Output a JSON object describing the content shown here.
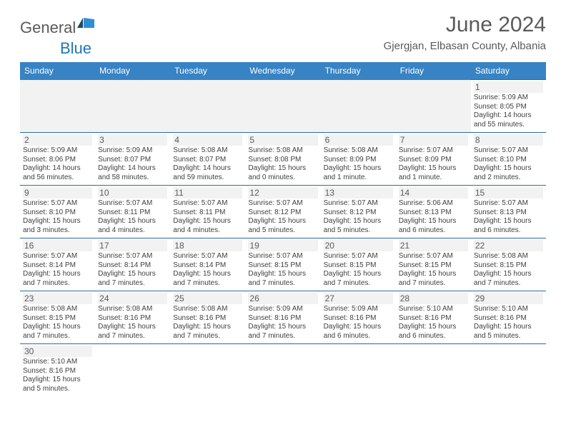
{
  "logo": {
    "main": "General",
    "accent": "Blue"
  },
  "title": "June 2024",
  "location": "Gjergjan, Elbasan County, Albania",
  "dayHeaders": [
    "Sunday",
    "Monday",
    "Tuesday",
    "Wednesday",
    "Thursday",
    "Friday",
    "Saturday"
  ],
  "colors": {
    "headerBg": "#3783c4",
    "headerText": "#ffffff",
    "rowStripe": "#f2f2f2",
    "border": "#2a6aa3",
    "logoGray": "#5a5a5a",
    "logoBlue": "#2176be"
  },
  "weeks": [
    [
      null,
      null,
      null,
      null,
      null,
      null,
      {
        "n": "1",
        "sr": "Sunrise: 5:09 AM",
        "ss": "Sunset: 8:05 PM",
        "d1": "Daylight: 14 hours",
        "d2": "and 55 minutes."
      }
    ],
    [
      {
        "n": "2",
        "sr": "Sunrise: 5:09 AM",
        "ss": "Sunset: 8:06 PM",
        "d1": "Daylight: 14 hours",
        "d2": "and 56 minutes."
      },
      {
        "n": "3",
        "sr": "Sunrise: 5:09 AM",
        "ss": "Sunset: 8:07 PM",
        "d1": "Daylight: 14 hours",
        "d2": "and 58 minutes."
      },
      {
        "n": "4",
        "sr": "Sunrise: 5:08 AM",
        "ss": "Sunset: 8:07 PM",
        "d1": "Daylight: 14 hours",
        "d2": "and 59 minutes."
      },
      {
        "n": "5",
        "sr": "Sunrise: 5:08 AM",
        "ss": "Sunset: 8:08 PM",
        "d1": "Daylight: 15 hours",
        "d2": "and 0 minutes."
      },
      {
        "n": "6",
        "sr": "Sunrise: 5:08 AM",
        "ss": "Sunset: 8:09 PM",
        "d1": "Daylight: 15 hours",
        "d2": "and 1 minute."
      },
      {
        "n": "7",
        "sr": "Sunrise: 5:07 AM",
        "ss": "Sunset: 8:09 PM",
        "d1": "Daylight: 15 hours",
        "d2": "and 1 minute."
      },
      {
        "n": "8",
        "sr": "Sunrise: 5:07 AM",
        "ss": "Sunset: 8:10 PM",
        "d1": "Daylight: 15 hours",
        "d2": "and 2 minutes."
      }
    ],
    [
      {
        "n": "9",
        "sr": "Sunrise: 5:07 AM",
        "ss": "Sunset: 8:10 PM",
        "d1": "Daylight: 15 hours",
        "d2": "and 3 minutes."
      },
      {
        "n": "10",
        "sr": "Sunrise: 5:07 AM",
        "ss": "Sunset: 8:11 PM",
        "d1": "Daylight: 15 hours",
        "d2": "and 4 minutes."
      },
      {
        "n": "11",
        "sr": "Sunrise: 5:07 AM",
        "ss": "Sunset: 8:11 PM",
        "d1": "Daylight: 15 hours",
        "d2": "and 4 minutes."
      },
      {
        "n": "12",
        "sr": "Sunrise: 5:07 AM",
        "ss": "Sunset: 8:12 PM",
        "d1": "Daylight: 15 hours",
        "d2": "and 5 minutes."
      },
      {
        "n": "13",
        "sr": "Sunrise: 5:07 AM",
        "ss": "Sunset: 8:12 PM",
        "d1": "Daylight: 15 hours",
        "d2": "and 5 minutes."
      },
      {
        "n": "14",
        "sr": "Sunrise: 5:06 AM",
        "ss": "Sunset: 8:13 PM",
        "d1": "Daylight: 15 hours",
        "d2": "and 6 minutes."
      },
      {
        "n": "15",
        "sr": "Sunrise: 5:07 AM",
        "ss": "Sunset: 8:13 PM",
        "d1": "Daylight: 15 hours",
        "d2": "and 6 minutes."
      }
    ],
    [
      {
        "n": "16",
        "sr": "Sunrise: 5:07 AM",
        "ss": "Sunset: 8:14 PM",
        "d1": "Daylight: 15 hours",
        "d2": "and 7 minutes."
      },
      {
        "n": "17",
        "sr": "Sunrise: 5:07 AM",
        "ss": "Sunset: 8:14 PM",
        "d1": "Daylight: 15 hours",
        "d2": "and 7 minutes."
      },
      {
        "n": "18",
        "sr": "Sunrise: 5:07 AM",
        "ss": "Sunset: 8:14 PM",
        "d1": "Daylight: 15 hours",
        "d2": "and 7 minutes."
      },
      {
        "n": "19",
        "sr": "Sunrise: 5:07 AM",
        "ss": "Sunset: 8:15 PM",
        "d1": "Daylight: 15 hours",
        "d2": "and 7 minutes."
      },
      {
        "n": "20",
        "sr": "Sunrise: 5:07 AM",
        "ss": "Sunset: 8:15 PM",
        "d1": "Daylight: 15 hours",
        "d2": "and 7 minutes."
      },
      {
        "n": "21",
        "sr": "Sunrise: 5:07 AM",
        "ss": "Sunset: 8:15 PM",
        "d1": "Daylight: 15 hours",
        "d2": "and 7 minutes."
      },
      {
        "n": "22",
        "sr": "Sunrise: 5:08 AM",
        "ss": "Sunset: 8:15 PM",
        "d1": "Daylight: 15 hours",
        "d2": "and 7 minutes."
      }
    ],
    [
      {
        "n": "23",
        "sr": "Sunrise: 5:08 AM",
        "ss": "Sunset: 8:15 PM",
        "d1": "Daylight: 15 hours",
        "d2": "and 7 minutes."
      },
      {
        "n": "24",
        "sr": "Sunrise: 5:08 AM",
        "ss": "Sunset: 8:16 PM",
        "d1": "Daylight: 15 hours",
        "d2": "and 7 minutes."
      },
      {
        "n": "25",
        "sr": "Sunrise: 5:08 AM",
        "ss": "Sunset: 8:16 PM",
        "d1": "Daylight: 15 hours",
        "d2": "and 7 minutes."
      },
      {
        "n": "26",
        "sr": "Sunrise: 5:09 AM",
        "ss": "Sunset: 8:16 PM",
        "d1": "Daylight: 15 hours",
        "d2": "and 7 minutes."
      },
      {
        "n": "27",
        "sr": "Sunrise: 5:09 AM",
        "ss": "Sunset: 8:16 PM",
        "d1": "Daylight: 15 hours",
        "d2": "and 6 minutes."
      },
      {
        "n": "28",
        "sr": "Sunrise: 5:10 AM",
        "ss": "Sunset: 8:16 PM",
        "d1": "Daylight: 15 hours",
        "d2": "and 6 minutes."
      },
      {
        "n": "29",
        "sr": "Sunrise: 5:10 AM",
        "ss": "Sunset: 8:16 PM",
        "d1": "Daylight: 15 hours",
        "d2": "and 5 minutes."
      }
    ],
    [
      {
        "n": "30",
        "sr": "Sunrise: 5:10 AM",
        "ss": "Sunset: 8:16 PM",
        "d1": "Daylight: 15 hours",
        "d2": "and 5 minutes."
      },
      null,
      null,
      null,
      null,
      null,
      null
    ]
  ]
}
